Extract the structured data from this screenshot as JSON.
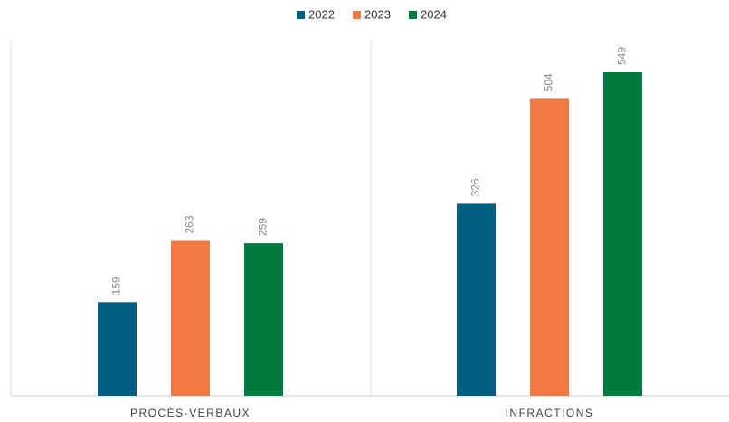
{
  "chart_data": {
    "type": "bar",
    "categories": [
      "PROCÈS-VERBAUX",
      "INFRACTIONS"
    ],
    "series": [
      {
        "name": "2022",
        "color": "#005f80",
        "values": [
          159,
          326
        ]
      },
      {
        "name": "2023",
        "color": "#f07a42",
        "values": [
          263,
          504
        ]
      },
      {
        "name": "2024",
        "color": "#007a3e",
        "values": [
          259,
          549
        ]
      }
    ],
    "legend": "top"
  }
}
